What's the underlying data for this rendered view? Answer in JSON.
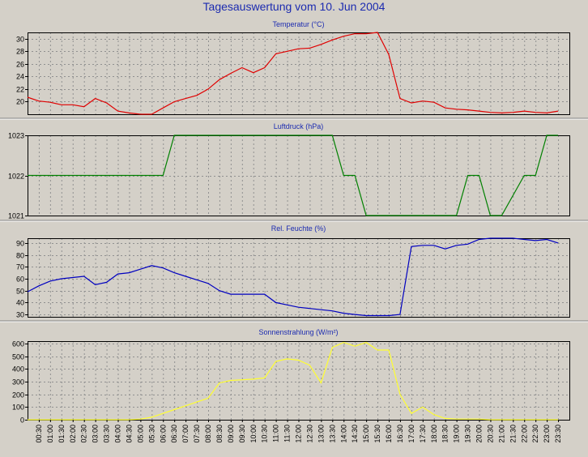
{
  "page_title": "Tagesauswertung vom 10. Jun 2004",
  "x_ticks": [
    "00:30",
    "01:00",
    "01:30",
    "02:00",
    "02:30",
    "03:00",
    "03:30",
    "04:00",
    "04:30",
    "05:00",
    "05:30",
    "06:00",
    "06:30",
    "07:00",
    "07:30",
    "08:00",
    "08:30",
    "09:00",
    "09:30",
    "10:00",
    "10:30",
    "11:00",
    "11:30",
    "12:00",
    "12:30",
    "13:00",
    "13:30",
    "14:00",
    "14:30",
    "15:00",
    "15:30",
    "16:00",
    "16:30",
    "17:00",
    "17:30",
    "18:00",
    "18:30",
    "19:00",
    "19:30",
    "20:00",
    "20:30",
    "21:00",
    "21:30",
    "22:00",
    "22:30",
    "23:00",
    "23:30"
  ],
  "chart_data": [
    {
      "type": "line",
      "title": "Temperatur (°C)",
      "ylim": [
        18,
        31
      ],
      "yticks": [
        20,
        22,
        24,
        26,
        28,
        30
      ],
      "color": "#e00000",
      "grid": true,
      "x": [
        "00:00",
        "00:30",
        "01:00",
        "01:30",
        "02:00",
        "02:30",
        "03:00",
        "03:30",
        "04:00",
        "04:30",
        "05:00",
        "05:30",
        "06:00",
        "06:30",
        "07:00",
        "07:30",
        "08:00",
        "08:30",
        "09:00",
        "09:30",
        "10:00",
        "10:30",
        "11:00",
        "11:30",
        "12:00",
        "12:30",
        "13:00",
        "13:30",
        "14:00",
        "14:30",
        "15:00",
        "15:30",
        "16:00",
        "16:30",
        "17:00",
        "17:30",
        "18:00",
        "18:30",
        "19:00",
        "19:30",
        "20:00",
        "20:30",
        "21:00",
        "21:30",
        "22:00",
        "22:30",
        "23:00",
        "23:30"
      ],
      "values": [
        20.7,
        20.1,
        19.9,
        19.5,
        19.5,
        19.2,
        20.5,
        19.8,
        18.5,
        18.2,
        18.0,
        18.0,
        19.0,
        20.0,
        20.5,
        21.0,
        22.0,
        23.5,
        24.5,
        25.4,
        24.6,
        25.4,
        27.6,
        28.0,
        28.4,
        28.5,
        29.1,
        29.8,
        30.4,
        30.8,
        30.8,
        31.0,
        27.5,
        20.5,
        19.8,
        20.1,
        19.9,
        19.0,
        18.8,
        18.7,
        18.5,
        18.3,
        18.2,
        18.3,
        18.5,
        18.3,
        18.2,
        18.5
      ]
    },
    {
      "type": "line",
      "title": "Luftdruck (hPa)",
      "ylim": [
        1021,
        1023
      ],
      "yticks": [
        1021,
        1022,
        1023
      ],
      "color": "#008000",
      "grid": true,
      "x": [
        "00:00",
        "06:00",
        "06:30",
        "13:30",
        "14:00",
        "14:30",
        "15:00",
        "19:00",
        "19:30",
        "20:00",
        "20:30",
        "21:00",
        "22:00",
        "22:30",
        "23:00",
        "23:30"
      ],
      "values": [
        1022,
        1022,
        1023,
        1023,
        1022,
        1022,
        1021,
        1021,
        1022,
        1022,
        1021,
        1021,
        1022,
        1022,
        1023,
        1023
      ]
    },
    {
      "type": "line",
      "title": "Rel. Feuchte (%)",
      "ylim": [
        28,
        94
      ],
      "yticks": [
        30,
        40,
        50,
        60,
        70,
        80,
        90
      ],
      "color": "#0000c0",
      "grid": true,
      "x": [
        "00:00",
        "00:30",
        "01:00",
        "01:30",
        "02:00",
        "02:30",
        "03:00",
        "03:30",
        "04:00",
        "04:30",
        "05:00",
        "05:30",
        "06:00",
        "06:30",
        "07:00",
        "07:30",
        "08:00",
        "08:30",
        "09:00",
        "09:30",
        "10:00",
        "10:30",
        "11:00",
        "11:30",
        "12:00",
        "12:30",
        "13:00",
        "13:30",
        "14:00",
        "14:30",
        "15:00",
        "15:30",
        "16:00",
        "16:30",
        "17:00",
        "17:30",
        "18:00",
        "18:30",
        "19:00",
        "19:30",
        "20:00",
        "20:30",
        "21:00",
        "21:30",
        "22:00",
        "22:30",
        "23:00",
        "23:30"
      ],
      "values": [
        49,
        54,
        58,
        60,
        61,
        62,
        55,
        57,
        64,
        65,
        68,
        71,
        69,
        65,
        62,
        59,
        56,
        50,
        47,
        47,
        47,
        47,
        40,
        38,
        36,
        35,
        34,
        33,
        31,
        30,
        29,
        29,
        29,
        30,
        87,
        88,
        88,
        85,
        88,
        89,
        93,
        94,
        94,
        94,
        93,
        92,
        93,
        90
      ]
    },
    {
      "type": "line",
      "title": "Sonnenstrahlung (W/m²)",
      "ylim": [
        0,
        620
      ],
      "yticks": [
        0,
        100,
        200,
        300,
        400,
        500,
        600
      ],
      "color": "#ffff30",
      "grid": true,
      "x": [
        "00:00",
        "04:00",
        "04:30",
        "05:00",
        "05:30",
        "06:00",
        "06:30",
        "07:00",
        "07:30",
        "08:00",
        "08:30",
        "09:00",
        "09:30",
        "10:00",
        "10:30",
        "11:00",
        "11:30",
        "12:00",
        "12:30",
        "13:00",
        "13:30",
        "14:00",
        "14:30",
        "15:00",
        "15:30",
        "16:00",
        "16:30",
        "17:00",
        "17:30",
        "18:00",
        "18:30",
        "19:00",
        "19:30",
        "20:00",
        "20:30",
        "23:30"
      ],
      "values": [
        0,
        0,
        0,
        5,
        20,
        50,
        80,
        110,
        140,
        170,
        290,
        310,
        315,
        320,
        330,
        460,
        480,
        470,
        430,
        290,
        570,
        610,
        580,
        610,
        550,
        550,
        200,
        50,
        100,
        40,
        10,
        5,
        5,
        5,
        0,
        0
      ]
    }
  ]
}
